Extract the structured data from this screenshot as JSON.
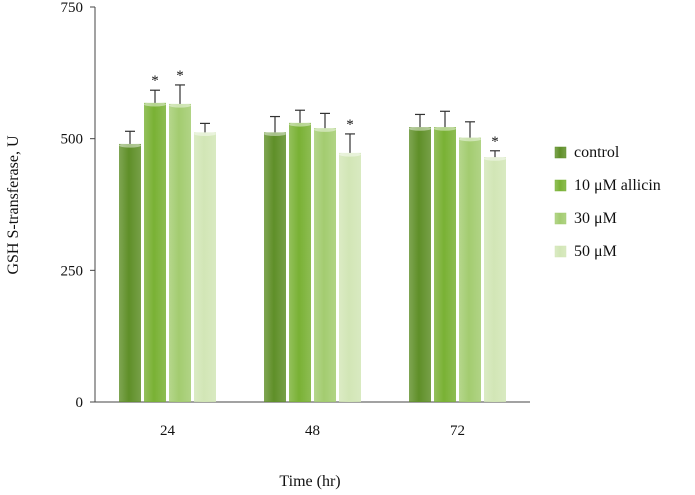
{
  "chart_data": {
    "type": "bar",
    "title": "",
    "xlabel": "Time (hr)",
    "ylabel": "GSH S-transferase, U",
    "ylim": [
      0,
      750
    ],
    "yticks": [
      0,
      250,
      500,
      750
    ],
    "categories": [
      "24",
      "48",
      "72"
    ],
    "grid": false,
    "legend_position": "right",
    "series": [
      {
        "name": "control",
        "color": "#5f8f28",
        "values": [
          490,
          512,
          522
        ],
        "errors": [
          24,
          30,
          24
        ],
        "significant": [
          false,
          false,
          false
        ]
      },
      {
        "name": "10 μM allicin",
        "color": "#79b134",
        "values": [
          568,
          530,
          522
        ],
        "errors": [
          24,
          24,
          30
        ],
        "significant": [
          true,
          false,
          false
        ]
      },
      {
        "name": "30 μM",
        "color": "#a3cc70",
        "values": [
          566,
          520,
          502
        ],
        "errors": [
          36,
          28,
          30
        ],
        "significant": [
          true,
          false,
          false
        ]
      },
      {
        "name": "50 μM",
        "color": "#d2e6b6",
        "values": [
          512,
          473,
          465
        ],
        "errors": [
          17,
          36,
          12
        ],
        "significant": [
          false,
          true,
          true
        ]
      }
    ],
    "significance_marker": "*"
  }
}
